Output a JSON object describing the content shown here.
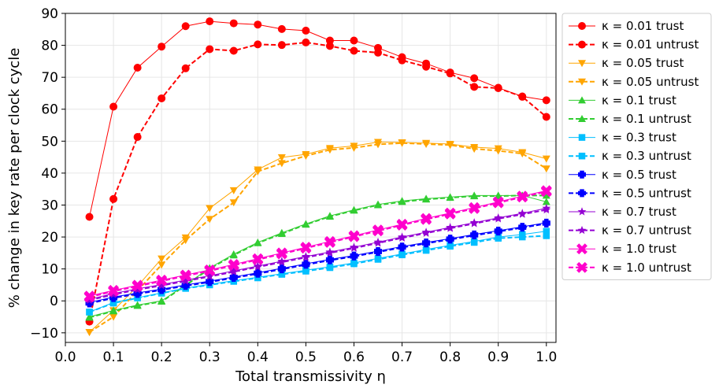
{
  "chart_data": {
    "type": "line",
    "xlabel": "Total transmissivity η",
    "ylabel": "% change in key rate per clock cycle",
    "xlim": [
      0.0,
      1.02
    ],
    "ylim": [
      -13,
      90
    ],
    "xticks": [
      0.0,
      0.1,
      0.2,
      0.3,
      0.4,
      0.5,
      0.6,
      0.7,
      0.8,
      0.9,
      1.0
    ],
    "xtick_labels": [
      "0.0",
      "0.1",
      "0.2",
      "0.3",
      "0.4",
      "0.5",
      "0.6",
      "0.7",
      "0.8",
      "0.9",
      "1.0"
    ],
    "yticks": [
      -10,
      0,
      10,
      20,
      30,
      40,
      50,
      60,
      70,
      80,
      90
    ],
    "ytick_labels": [
      "−10",
      "0",
      "10",
      "20",
      "30",
      "40",
      "50",
      "60",
      "70",
      "80",
      "90"
    ],
    "grid": true,
    "legend_position": "right-outside",
    "x": [
      0.05,
      0.1,
      0.15,
      0.2,
      0.25,
      0.3,
      0.35,
      0.4,
      0.45,
      0.5,
      0.55,
      0.6,
      0.65,
      0.7,
      0.75,
      0.8,
      0.85,
      0.9,
      0.95,
      1.0
    ],
    "series": [
      {
        "name": "κ = 0.01 trust",
        "color": "#ff0000",
        "marker": "circle",
        "dashed": false,
        "values": [
          26.3,
          60.8,
          73.0,
          79.6,
          86.0,
          87.5,
          86.9,
          86.5,
          85.1,
          84.6,
          81.5,
          81.5,
          79.2,
          76.3,
          74.3,
          71.5,
          69.7,
          66.7,
          64.0,
          62.8
        ]
      },
      {
        "name": "κ = 0.01 untrust",
        "color": "#ff0000",
        "marker": "circle",
        "dashed": true,
        "values": [
          -6.5,
          31.9,
          51.3,
          63.4,
          72.8,
          78.8,
          78.3,
          80.3,
          80.1,
          80.9,
          79.8,
          78.3,
          77.7,
          75.3,
          73.3,
          71.2,
          67.0,
          66.6,
          63.9,
          57.6
        ]
      },
      {
        "name": "κ = 0.05 trust",
        "color": "#ffa500",
        "marker": "triangle-down",
        "dashed": false,
        "values": [
          -9.8,
          -3.0,
          4.6,
          13.2,
          19.8,
          29.0,
          34.6,
          41.1,
          44.9,
          45.9,
          47.8,
          48.5,
          49.7,
          49.6,
          49.4,
          49.1,
          48.1,
          47.7,
          46.5,
          44.5
        ]
      },
      {
        "name": "κ = 0.05 untrust",
        "color": "#ffa500",
        "marker": "triangle-down",
        "dashed": true,
        "values": [
          -9.8,
          -5.0,
          3.2,
          11.3,
          19.0,
          25.6,
          30.8,
          40.5,
          43.1,
          45.4,
          47.3,
          47.9,
          49.0,
          49.4,
          49.1,
          48.8,
          47.6,
          47.0,
          46.1,
          41.4
        ]
      },
      {
        "name": "κ = 0.1 trust",
        "color": "#32cd32",
        "marker": "triangle-up",
        "dashed": false,
        "values": [
          -5.0,
          -3.0,
          -1.3,
          0.0,
          5.0,
          10.3,
          14.6,
          18.3,
          21.3,
          24.1,
          26.6,
          28.5,
          30.2,
          31.3,
          32.0,
          32.5,
          33.0,
          33.0,
          33.0,
          31.0
        ]
      },
      {
        "name": "κ = 0.1 untrust",
        "color": "#32cd32",
        "marker": "triangle-up",
        "dashed": true,
        "values": [
          -5.2,
          -3.2,
          -1.5,
          -0.2,
          4.8,
          10.1,
          14.3,
          18.1,
          21.0,
          23.9,
          26.4,
          28.3,
          30.0,
          31.0,
          31.8,
          32.3,
          32.8,
          32.8,
          33.0,
          33.0
        ]
      },
      {
        "name": "κ = 0.3 trust",
        "color": "#00bfff",
        "marker": "square",
        "dashed": false,
        "values": [
          -3.5,
          -0.5,
          1.0,
          2.5,
          4.0,
          5.2,
          6.3,
          7.4,
          8.5,
          9.6,
          10.7,
          11.9,
          13.3,
          14.7,
          16.1,
          17.4,
          18.6,
          20.0,
          20.8,
          21.8
        ]
      },
      {
        "name": "κ = 0.3 untrust",
        "color": "#00bfff",
        "marker": "square",
        "dashed": true,
        "values": [
          -3.5,
          -0.7,
          0.9,
          2.4,
          3.9,
          5.0,
          6.1,
          7.2,
          8.3,
          9.3,
          10.4,
          11.6,
          13.0,
          14.4,
          15.8,
          17.1,
          18.3,
          19.6,
          20.0,
          20.4
        ]
      },
      {
        "name": "κ = 0.5 trust",
        "color": "#0000ff",
        "marker": "plus",
        "dashed": false,
        "values": [
          -0.5,
          1.2,
          2.5,
          3.7,
          5.0,
          6.2,
          7.5,
          8.8,
          10.2,
          11.6,
          13.0,
          14.2,
          15.6,
          17.0,
          18.3,
          19.5,
          20.8,
          22.0,
          23.2,
          24.5
        ]
      },
      {
        "name": "κ = 0.5 untrust",
        "color": "#0000ff",
        "marker": "plus",
        "dashed": true,
        "values": [
          -0.8,
          0.9,
          2.2,
          3.4,
          4.7,
          5.9,
          7.2,
          8.5,
          9.9,
          11.3,
          12.7,
          13.9,
          15.3,
          16.7,
          18.0,
          19.2,
          20.5,
          21.7,
          22.9,
          24.2
        ]
      },
      {
        "name": "κ = 0.7 trust",
        "color": "#9400d3",
        "marker": "star",
        "dashed": false,
        "values": [
          0.5,
          2.3,
          3.8,
          5.1,
          6.5,
          7.9,
          9.4,
          10.9,
          12.4,
          13.9,
          15.3,
          16.8,
          18.4,
          20.0,
          21.5,
          23.0,
          24.5,
          26.0,
          27.4,
          29.0
        ]
      },
      {
        "name": "κ = 0.7 untrust",
        "color": "#9400d3",
        "marker": "star",
        "dashed": true,
        "values": [
          0.2,
          2.0,
          3.5,
          4.8,
          6.2,
          7.6,
          9.1,
          10.6,
          12.1,
          13.6,
          15.0,
          16.5,
          18.1,
          19.7,
          21.2,
          22.7,
          24.2,
          25.7,
          27.1,
          28.5
        ]
      },
      {
        "name": "κ = 1.0 trust",
        "color": "#ff00cc",
        "marker": "x",
        "dashed": false,
        "values": [
          1.5,
          3.3,
          4.9,
          6.5,
          8.1,
          9.7,
          11.4,
          13.2,
          15.0,
          16.8,
          18.6,
          20.4,
          22.2,
          24.0,
          25.8,
          27.5,
          29.2,
          31.0,
          32.8,
          34.5
        ]
      },
      {
        "name": "κ = 1.0 untrust",
        "color": "#ff00cc",
        "marker": "x",
        "dashed": true,
        "values": [
          1.2,
          3.0,
          4.6,
          6.2,
          7.8,
          9.4,
          11.1,
          12.9,
          14.7,
          16.5,
          18.3,
          20.1,
          21.9,
          23.7,
          25.5,
          27.2,
          28.9,
          30.7,
          32.5,
          34.2
        ]
      }
    ]
  }
}
